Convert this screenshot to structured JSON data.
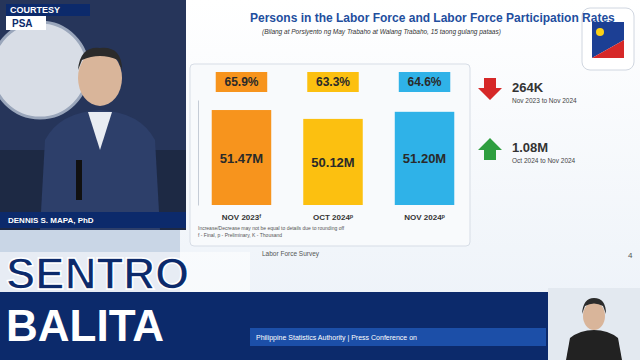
{
  "chart_data": {
    "type": "bar",
    "title": "Persons in the Labor Force and Labor Force Participation Rates",
    "subtitle": "(Bilang at Porsiyento ng May Trabaho at Walang Trabaho, 15 taong gulang pataas)",
    "categories": [
      "NOV 2023ᶠ",
      "OCT 2024ᵖ",
      "NOV 2024ᵖ"
    ],
    "values": [
      51.47,
      50.12,
      51.2
    ],
    "value_labels": [
      "51.47M",
      "50.12M",
      "51.20M"
    ],
    "colors": [
      "#f7941d",
      "#fcc010",
      "#2fb2e8"
    ],
    "data_labels": true,
    "ylim": [
      37,
      53
    ],
    "tick_labels": "x",
    "participation_rates": {
      "values": [
        65.9,
        63.3,
        64.6
      ],
      "value_labels": [
        "65.9%",
        "63.3%",
        "64.6%"
      ]
    },
    "changes": [
      {
        "value": -264,
        "label": "264K",
        "period": "Nov 2023 to Nov 2024"
      },
      {
        "value": 1080,
        "label": "1.08M",
        "period": "Oct 2024 to Nov 2024"
      }
    ],
    "notes": [
      "Increase/Decrease may not be equal to details due to rounding off",
      "f - Final, p - Preliminary, K - Thousand",
      "Labor Force Survey"
    ],
    "page": "4"
  },
  "broadcast": {
    "courtesy": "COURTESY",
    "source": "PSA",
    "speaker": "DENNIS S. MAPA, PhD",
    "show": [
      "SENTRO",
      "BALITA"
    ],
    "ticker": "Philippine Statistics Authority | Press Conference on"
  }
}
